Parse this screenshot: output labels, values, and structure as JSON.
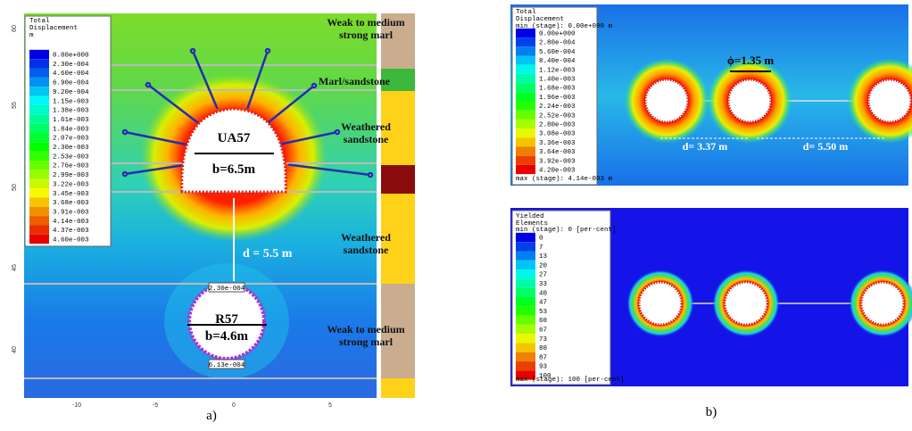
{
  "panel_a": {
    "legend": {
      "title": [
        "Total",
        "Displacement",
        "m"
      ],
      "labels": [
        "0.00e+000",
        "2.30e-004",
        "4.60e-004",
        "6.90e-004",
        "9.20e-004",
        "1.15e-003",
        "1.38e-003",
        "1.61e-003",
        "1.84e-003",
        "2.07e-003",
        "2.30e-003",
        "2.53e-003",
        "2.76e-003",
        "2.99e-003",
        "3.22e-003",
        "3.45e-003",
        "3.68e-003",
        "3.91e-003",
        "4.14e-003",
        "4.37e-003",
        "4.60e-003"
      ]
    },
    "y_ticks": [
      "60",
      "55",
      "50",
      "45",
      "40"
    ],
    "x_ticks": [
      "-10",
      "-5",
      "0",
      "5"
    ],
    "upper_tunnel": {
      "name": "UA57",
      "width": "b=6.5m"
    },
    "distance": "d = 5.5 m",
    "lower_tunnel": {
      "name": "R57",
      "width": "b=4.6m"
    },
    "point_labels": [
      "2.30e-004",
      "6.13e-004"
    ],
    "strata": [
      [
        "Weak to medium",
        "strong marl"
      ],
      [
        "Marl/sandstone"
      ],
      [
        "Weathered",
        "sandstone"
      ],
      [
        "Weathered",
        "sandstone"
      ],
      [
        "Weak to medium",
        "strong marl"
      ]
    ],
    "caption": "a)"
  },
  "panel_b": {
    "displacement": {
      "legend": {
        "title": [
          "Total",
          "Displacement"
        ],
        "min": "min (stage): 0.00e+000 m",
        "labels": [
          "0.00e+000",
          "2.80e-004",
          "5.60e-004",
          "8.40e-004",
          "1.12e-003",
          "1.40e-003",
          "1.68e-003",
          "1.96e-003",
          "2.24e-003",
          "2.52e-003",
          "2.80e-003",
          "3.08e-003",
          "3.36e-003",
          "3.64e-003",
          "3.92e-003",
          "4.20e-003"
        ],
        "max": "max (stage): 4.14e-003 m"
      },
      "diameter": "ϕ=1.35 m",
      "distances": [
        "d= 3.37 m",
        "d= 5.50 m"
      ]
    },
    "yielded": {
      "legend": {
        "title": [
          "Yielded",
          "Elements"
        ],
        "min": "min (stage): 0 [per-cent]",
        "labels": [
          "0",
          "7",
          "13",
          "20",
          "27",
          "33",
          "40",
          "47",
          "53",
          "60",
          "67",
          "73",
          "80",
          "87",
          "93",
          "100"
        ],
        "max": "max (stage): 100 [per-cent]"
      }
    },
    "caption": "b)"
  }
}
